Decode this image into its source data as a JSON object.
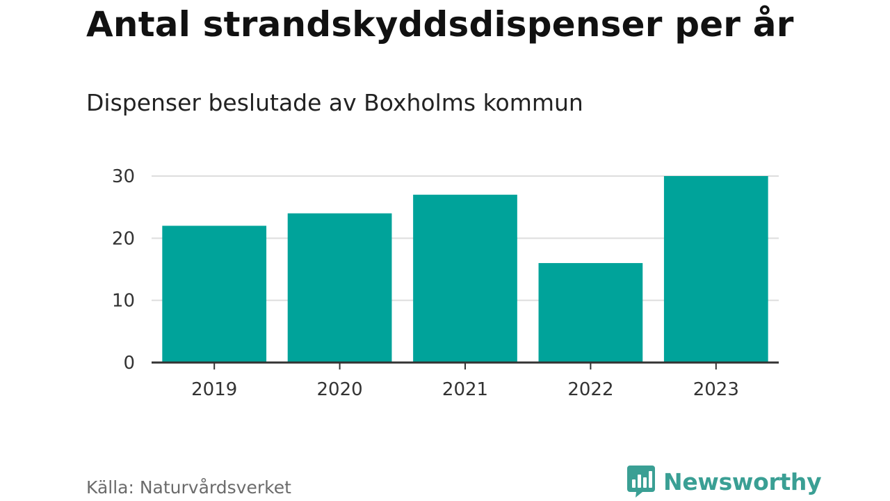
{
  "header": {
    "title": "Antal strandskyddsdispenser per år",
    "subtitle": "Dispenser beslutade av Boxholms kommun"
  },
  "footer": {
    "source": "Källa: Naturvårdsverket",
    "brand_name": "Newsworthy",
    "brand_icon": "bar-chart-speech-bubble-icon"
  },
  "colors": {
    "bar": "#00a39a",
    "grid": "#dddddd",
    "axis": "#333333",
    "brand": "#3a9f94"
  },
  "chart_data": {
    "type": "bar",
    "title": "Antal strandskyddsdispenser per år",
    "subtitle": "Dispenser beslutade av Boxholms kommun",
    "categories": [
      "2019",
      "2020",
      "2021",
      "2022",
      "2023"
    ],
    "values": [
      22,
      24,
      27,
      16,
      30
    ],
    "xlabel": "",
    "ylabel": "",
    "ylim": [
      0,
      30
    ],
    "yticks": [
      0,
      10,
      20,
      30
    ],
    "grid": true,
    "legend": "none"
  }
}
